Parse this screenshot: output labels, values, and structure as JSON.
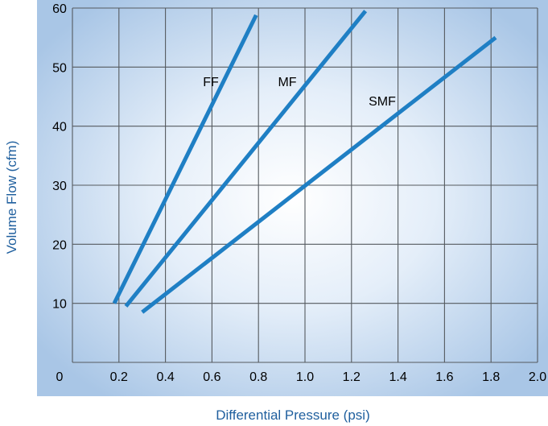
{
  "chart_data": {
    "type": "line",
    "title": "",
    "xlabel": "Differential Pressure (psi)",
    "ylabel": "Volume Flow (cfm)",
    "xlim": [
      0,
      2.0
    ],
    "ylim": [
      0,
      60
    ],
    "x_ticks": [
      "0",
      "0.2",
      "0.4",
      "0.6",
      "0.8",
      "1.0",
      "1.2",
      "1.4",
      "1.6",
      "1.8",
      "2.0"
    ],
    "y_ticks": [
      "10",
      "20",
      "30",
      "40",
      "50",
      "60"
    ],
    "grid": true,
    "legend": "none",
    "series": [
      {
        "name": "FF",
        "x": [
          0.18,
          0.79
        ],
        "y": [
          10,
          58.8
        ]
      },
      {
        "name": "MF",
        "x": [
          0.23,
          1.26
        ],
        "y": [
          9.5,
          59.5
        ]
      },
      {
        "name": "SMF",
        "x": [
          0.3,
          1.82
        ],
        "y": [
          8.5,
          55
        ]
      }
    ],
    "colors": {
      "line": "#1f7fc4",
      "grid": "#555a5f",
      "background_center": "#ffffff",
      "background_edge": "#a9c6e6",
      "axis_title": "#1f5f9e"
    }
  }
}
